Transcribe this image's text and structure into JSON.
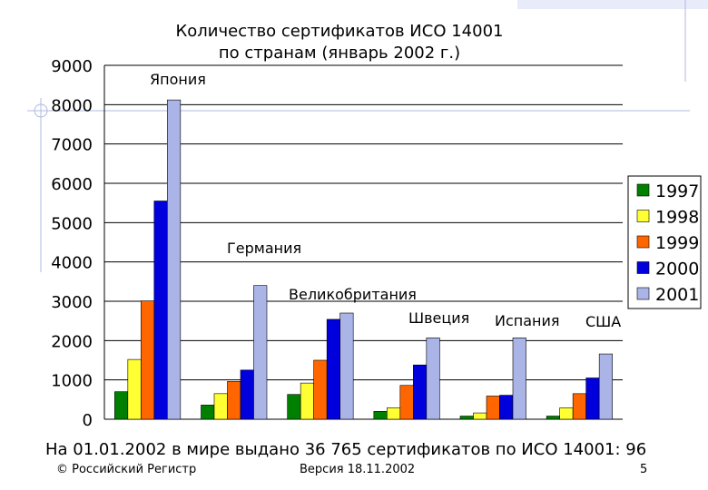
{
  "chart_data": {
    "type": "bar",
    "title": "Количество сертификатов ИСО 14001\nпо странам (январь 2002 г.)",
    "xlabel": "",
    "ylabel": "",
    "ylim": [
      0,
      9000
    ],
    "yticks": [
      0,
      1000,
      2000,
      3000,
      4000,
      5000,
      6000,
      7000,
      8000,
      9000
    ],
    "grid": true,
    "legend": "right",
    "categories": [
      "Япония",
      "Германия",
      "Великобритания",
      "Швеция",
      "Испания",
      "США"
    ],
    "series": [
      {
        "name": "1997",
        "color": "#008000",
        "values": [
          700,
          360,
          630,
          200,
          80,
          80
        ]
      },
      {
        "name": "1998",
        "color": "#ffff33",
        "values": [
          1520,
          650,
          920,
          290,
          160,
          290
        ]
      },
      {
        "name": "1999",
        "color": "#ff6600",
        "values": [
          3010,
          960,
          1500,
          860,
          590,
          650
        ]
      },
      {
        "name": "2000",
        "color": "#0000dd",
        "values": [
          5550,
          1250,
          2540,
          1380,
          610,
          1050
        ]
      },
      {
        "name": "2001",
        "color": "#aab4e6",
        "values": [
          8120,
          3400,
          2700,
          2070,
          2070,
          1660
        ]
      }
    ]
  },
  "footer": {
    "summary": "На 01.01.2002 в мире выдано 36 765 сертификатов по ИСО 14001: 96",
    "copyright": "© Российский Регистр",
    "version": "Версия 18.11.2002",
    "page": "5"
  },
  "colors": {
    "grid": "#000000",
    "frame_decoration": "#b0b8e0"
  }
}
